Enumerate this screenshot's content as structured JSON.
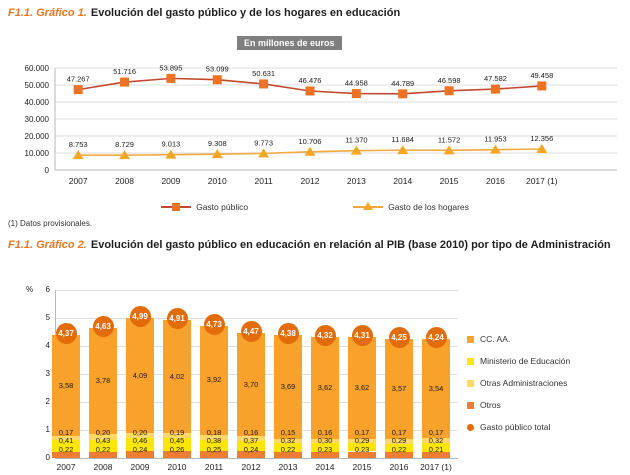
{
  "header1": {
    "prefix": "F1.1. Gráfico 1.",
    "title": "Evolución del gasto público y de los hogares en educación"
  },
  "unit_badge": "En millones de euros",
  "footnote": "(1) Datos provisionales.",
  "header2": {
    "prefix": "F1.1. Gráfico 2.",
    "title": "Evolución del gasto público en educación en relación al PIB (base 2010) por tipo de Administración"
  },
  "colors": {
    "title_accent": "#e87722",
    "badge_bg": "#7f7f7f",
    "gridline": "#dcdcdc",
    "axis": "#b7b7b7"
  },
  "chart_data": [
    {
      "type": "line",
      "title": "Evolución del gasto público y de los hogares en educación",
      "unit": "En millones de euros",
      "footnote": "(1) Datos provisionales.",
      "categories": [
        "2007",
        "2008",
        "2009",
        "2010",
        "2011",
        "2012",
        "2013",
        "2014",
        "2015",
        "2016",
        "2017 (1)"
      ],
      "ylim": [
        0,
        60000
      ],
      "ytick_step": 10000,
      "ytick_labels": [
        "0",
        "10.000",
        "20.000",
        "30.000",
        "40.000",
        "50.000",
        "60.000"
      ],
      "grid": true,
      "legend_position": "bottom",
      "series": [
        {
          "name": "Gasto público",
          "marker": "square",
          "color": "#c2492f",
          "marker_color": "#ed7223",
          "values": [
            47267,
            51716,
            53895,
            53099,
            50631,
            46476,
            44958,
            44789,
            46598,
            47582,
            49458
          ],
          "labels": [
            "47.267",
            "51.716",
            "53.895",
            "53.099",
            "50.631",
            "46.476",
            "44.958",
            "44.789",
            "46.598",
            "47.582",
            "49.458"
          ]
        },
        {
          "name": "Gasto de los hogares",
          "marker": "triangle",
          "color": "#f2a93e",
          "marker_color": "#f5a623",
          "values": [
            8753,
            8729,
            9013,
            9308,
            9773,
            10706,
            11370,
            11684,
            11572,
            11953,
            12356
          ],
          "labels": [
            "8.753",
            "8.729",
            "9.013",
            "9.308",
            "9.773",
            "10.706",
            "11.370",
            "11.684",
            "11.572",
            "11.953",
            "12.356"
          ]
        }
      ]
    },
    {
      "type": "bar",
      "stacked": true,
      "title": "Evolución del gasto público en educación en relación al PIB (base 2010) por tipo de Administración",
      "ylabel": "%",
      "ylim": [
        0,
        6
      ],
      "ytick_labels": [
        "0",
        "1",
        "2",
        "3",
        "4",
        "5",
        "6"
      ],
      "grid": true,
      "legend_position": "right",
      "categories": [
        "2007",
        "2008",
        "2009",
        "2010",
        "2011",
        "2012",
        "2013",
        "2014",
        "2015",
        "2016",
        "2017 (1)"
      ],
      "series": [
        {
          "name": "Otros",
          "color": "#ed7d31",
          "values": [
            0.22,
            0.22,
            0.24,
            0.26,
            0.25,
            0.24,
            0.22,
            0.23,
            0.23,
            0.22,
            0.21
          ],
          "labels": [
            "0,22",
            "0,22",
            "0,24",
            "0,26",
            "0,25",
            "0,24",
            "0,22",
            "0,23",
            "0,23",
            "0,22",
            "0,21"
          ]
        },
        {
          "name": "Ministerio de Educación",
          "color": "#ffe600",
          "values": [
            0.41,
            0.43,
            0.46,
            0.45,
            0.38,
            0.37,
            0.32,
            0.3,
            0.29,
            0.29,
            0.32
          ],
          "labels": [
            "0,41",
            "0,43",
            "0,46",
            "0,45",
            "0,38",
            "0,37",
            "0,32",
            "0,30",
            "0,29",
            "0,29",
            "0,32"
          ]
        },
        {
          "name": "Otras Administraciones",
          "color": "#ffd966",
          "values": [
            0.17,
            0.2,
            0.2,
            0.19,
            0.18,
            0.16,
            0.15,
            0.16,
            0.17,
            0.17,
            0.17
          ],
          "labels": [
            "0,17",
            "0,20",
            "0,20",
            "0,19",
            "0,18",
            "0,16",
            "0,15",
            "0,16",
            "0,17",
            "0,17",
            "0,17"
          ]
        },
        {
          "name": "CC. AA.",
          "color": "#f9a22b",
          "values": [
            3.58,
            3.78,
            4.09,
            4.02,
            3.92,
            3.7,
            3.69,
            3.62,
            3.62,
            3.57,
            3.54
          ],
          "labels": [
            "3,58",
            "3,78",
            "4,09",
            "4,02",
            "3,92",
            "3,70",
            "3,69",
            "3,62",
            "3,62",
            "3,57",
            "3,54"
          ]
        }
      ],
      "total": {
        "name": "Gasto público total",
        "color": "#e26b0a",
        "values": [
          4.37,
          4.63,
          4.99,
          4.91,
          4.73,
          4.47,
          4.38,
          4.32,
          4.31,
          4.25,
          4.24
        ],
        "labels": [
          "4,37",
          "4,63",
          "4,99",
          "4,91",
          "4,73",
          "4,47",
          "4,38",
          "4,32",
          "4,31",
          "4,25",
          "4,24"
        ]
      },
      "legend": [
        {
          "label": "CC. AA.",
          "color": "#f9a22b",
          "shape": "square"
        },
        {
          "label": "Ministerio de Educación",
          "color": "#ffe600",
          "shape": "square"
        },
        {
          "label": "Otras Administraciones",
          "color": "#ffd966",
          "shape": "square"
        },
        {
          "label": "Otros",
          "color": "#ed7d31",
          "shape": "square"
        },
        {
          "label": "Gasto público total",
          "color": "#e26b0a",
          "shape": "circle"
        }
      ]
    }
  ]
}
